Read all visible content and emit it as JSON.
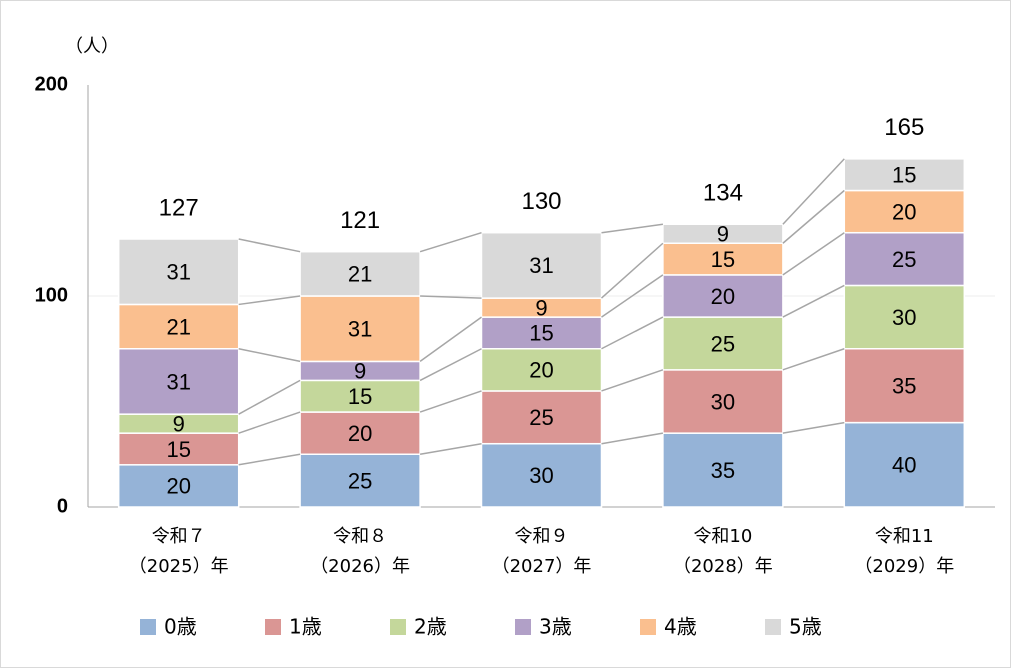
{
  "chart_data": {
    "type": "stacked-bar",
    "y_unit": "（人）",
    "categories": [
      [
        "令和７",
        "（2025）年"
      ],
      [
        "令和８",
        "（2026）年"
      ],
      [
        "令和９",
        "（2027）年"
      ],
      [
        "令和10",
        "（2028）年"
      ],
      [
        "令和11",
        "（2029）年"
      ]
    ],
    "series": [
      {
        "name": "0歳",
        "color": "#95b3d7",
        "values": [
          20,
          25,
          30,
          35,
          40
        ]
      },
      {
        "name": "1歳",
        "color": "#da9694",
        "values": [
          15,
          20,
          25,
          30,
          35
        ]
      },
      {
        "name": "2歳",
        "color": "#c4d79b",
        "values": [
          9,
          15,
          20,
          25,
          30
        ]
      },
      {
        "name": "3歳",
        "color": "#b1a0c7",
        "values": [
          31,
          9,
          15,
          20,
          25
        ]
      },
      {
        "name": "4歳",
        "color": "#fabf8f",
        "values": [
          21,
          31,
          9,
          15,
          20
        ]
      },
      {
        "name": "5歳",
        "color": "#d9d9d9",
        "values": [
          31,
          21,
          31,
          9,
          15
        ]
      }
    ],
    "totals": [
      127,
      121,
      130,
      134,
      165
    ],
    "ylim": [
      0,
      200
    ],
    "yticks": [
      0,
      100,
      200
    ],
    "grid": true
  }
}
